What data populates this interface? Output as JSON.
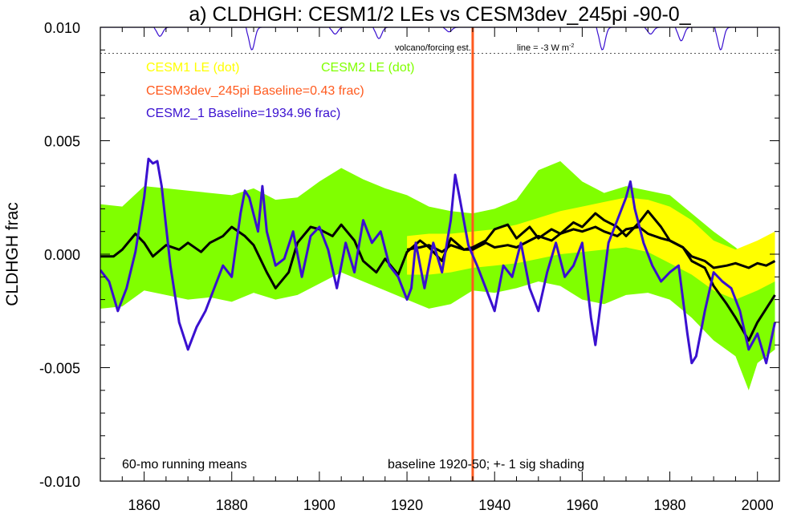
{
  "chart_data": {
    "type": "line",
    "title": "a) CLDHGH: CESM1/2 LEs vs CESM3dev_245pi -90-0_",
    "xlabel": "",
    "ylabel": "CLDHGH frac",
    "xlim": [
      1850,
      2005
    ],
    "ylim": [
      -0.01,
      0.01
    ],
    "x_ticks": [
      1860,
      1880,
      1900,
      1920,
      1940,
      1960,
      1980,
      2000
    ],
    "y_ticks": [
      0.01,
      0.005,
      0.0,
      -0.005,
      -0.01
    ],
    "y_tick_labels": [
      "0.010",
      "0.005",
      "0.000",
      "-0.005",
      "-0.010"
    ],
    "legend": [
      {
        "label": "CESM1 LE (dot)",
        "color": "#ffff00"
      },
      {
        "label": "CESM2 LE (dot)",
        "color": "#80ff00"
      },
      {
        "label": "CESM3dev_245pi Baseline=0.43 frac)",
        "color": "#ff5a1e"
      },
      {
        "label": "CESM2_1 Baseline=1934.96 frac)",
        "color": "#3a10d0"
      }
    ],
    "annotations": {
      "volcano_label": "volcano/forcing est.",
      "volcano_line_label": "line = -3 W m",
      "volcano_line_sup": "-2",
      "running_means": "60-mo running means",
      "baseline": "baseline 1920-50; +- 1 sig shading"
    },
    "reference_year": 1935,
    "volcano_threshold": 0.00885,
    "colors": {
      "cesm1_band": "#ffff00",
      "cesm2_band": "#80ff00",
      "cesm3": "#ff5a1e",
      "cesm2_1": "#3a10d0",
      "black_line": "#000000",
      "volcano": "#3a10d0"
    },
    "cesm2_band": {
      "x": [
        1850,
        1855,
        1860,
        1865,
        1870,
        1875,
        1880,
        1885,
        1890,
        1895,
        1900,
        1905,
        1910,
        1915,
        1920,
        1925,
        1930,
        1935,
        1940,
        1945,
        1950,
        1955,
        1960,
        1965,
        1970,
        1975,
        1980,
        1985,
        1990,
        1995,
        1998,
        2000,
        2004
      ],
      "upper": [
        0.0022,
        0.0021,
        0.003,
        0.0029,
        0.0028,
        0.0027,
        0.0026,
        0.0029,
        0.0024,
        0.0025,
        0.0032,
        0.0038,
        0.0033,
        0.0029,
        0.0026,
        0.0021,
        0.0019,
        0.0018,
        0.002,
        0.0024,
        0.0037,
        0.0041,
        0.0032,
        0.0027,
        0.003,
        0.0028,
        0.0026,
        0.0018,
        0.001,
        0.0003,
        -0.0002,
        0.0002,
        0.0006
      ],
      "lower": [
        -0.0024,
        -0.0023,
        -0.0016,
        -0.0018,
        -0.002,
        -0.0019,
        -0.0021,
        -0.0017,
        -0.002,
        -0.0018,
        -0.0013,
        -0.0008,
        -0.0012,
        -0.0016,
        -0.002,
        -0.0024,
        -0.0022,
        -0.0016,
        -0.0017,
        -0.0015,
        -0.0012,
        -0.0014,
        -0.002,
        -0.0022,
        -0.0018,
        -0.0017,
        -0.002,
        -0.0028,
        -0.0038,
        -0.0045,
        -0.006,
        -0.0048,
        -0.0042
      ]
    },
    "cesm1_band": {
      "x": [
        1920,
        1925,
        1930,
        1935,
        1940,
        1945,
        1950,
        1955,
        1960,
        1965,
        1970,
        1975,
        1980,
        1985,
        1990,
        1995,
        2000,
        2004
      ],
      "upper": [
        0.0008,
        0.0009,
        0.0009,
        0.001,
        0.0011,
        0.0013,
        0.0016,
        0.0019,
        0.0021,
        0.0023,
        0.0025,
        0.0024,
        0.0021,
        0.0015,
        0.0006,
        0.0002,
        0.0006,
        0.001
      ],
      "lower": [
        -0.0009,
        -0.0009,
        -0.0008,
        -0.0006,
        -0.0005,
        -0.0004,
        -0.0002,
        0.0,
        0.0001,
        0.0002,
        0.0003,
        0.0001,
        -0.0004,
        -0.0009,
        -0.0016,
        -0.002,
        -0.0016,
        -0.0012
      ]
    },
    "series": [
      {
        "name": "CESM2 LE mean",
        "color": "#000000",
        "x": [
          1850,
          1853,
          1855,
          1858,
          1860,
          1862,
          1865,
          1868,
          1870,
          1873,
          1875,
          1878,
          1880,
          1883,
          1885,
          1888,
          1890,
          1893,
          1895,
          1898,
          1900,
          1903,
          1905,
          1908,
          1910,
          1913,
          1915,
          1918,
          1920,
          1923,
          1925,
          1928,
          1930,
          1933,
          1935,
          1938,
          1940,
          1943,
          1945,
          1948,
          1950,
          1953,
          1955,
          1958,
          1960,
          1963,
          1965,
          1968,
          1970,
          1973,
          1975,
          1978,
          1980,
          1983,
          1985,
          1988,
          1990,
          1993,
          1995,
          1998,
          2000,
          2002,
          2004
        ],
        "y": [
          -0.0001,
          -0.0001,
          0.0002,
          0.0009,
          0.0005,
          -0.0001,
          0.0004,
          0.0002,
          0.0005,
          0.0001,
          0.0005,
          0.0008,
          0.0012,
          0.0008,
          0.0004,
          -0.0008,
          -0.0015,
          -0.0008,
          0.0005,
          0.0012,
          0.0011,
          0.0008,
          0.0013,
          0.0006,
          -0.0003,
          -0.0008,
          -0.0002,
          -0.0009,
          0.0001,
          0.0006,
          0.0003,
          -0.0003,
          0.0007,
          0.0002,
          0.0003,
          0.0006,
          0.0011,
          0.0013,
          0.0007,
          0.0012,
          0.0007,
          0.0011,
          0.0009,
          0.0014,
          0.0012,
          0.0018,
          0.0015,
          0.0012,
          0.0008,
          0.0014,
          0.0019,
          0.0012,
          0.0006,
          0.0003,
          -0.0003,
          -0.0006,
          -0.0014,
          -0.0022,
          -0.0028,
          -0.0038,
          -0.003,
          -0.0024,
          -0.0018
        ]
      },
      {
        "name": "CESM1 LE mean",
        "color": "#000000",
        "x": [
          1920,
          1923,
          1925,
          1928,
          1930,
          1933,
          1935,
          1938,
          1940,
          1943,
          1945,
          1948,
          1950,
          1953,
          1955,
          1958,
          1960,
          1963,
          1965,
          1968,
          1970,
          1973,
          1975,
          1978,
          1980,
          1983,
          1985,
          1988,
          1990,
          1993,
          1995,
          1998,
          2000,
          2002,
          2004
        ],
        "y": [
          0.0002,
          0.0003,
          0.0004,
          0.0001,
          0.0004,
          0.0002,
          0.0002,
          0.0005,
          0.0003,
          0.0004,
          0.0003,
          0.0006,
          0.0008,
          0.0006,
          0.0009,
          0.0011,
          0.001,
          0.0012,
          0.001,
          0.0008,
          0.0011,
          0.0012,
          0.0009,
          0.0007,
          0.0006,
          0.0003,
          -0.0001,
          -0.0003,
          -0.0006,
          -0.0005,
          -0.0004,
          -0.0006,
          -0.0004,
          -0.0005,
          -0.0003
        ]
      },
      {
        "name": "CESM2_1 Baseline=1934.96 frac)",
        "color": "#3a10d0",
        "x": [
          1850,
          1852,
          1854,
          1856,
          1858,
          1860,
          1861,
          1862,
          1863,
          1864,
          1866,
          1868,
          1870,
          1872,
          1874,
          1876,
          1878,
          1880,
          1882,
          1883,
          1884,
          1886,
          1887,
          1888,
          1890,
          1892,
          1894,
          1896,
          1898,
          1900,
          1902,
          1904,
          1906,
          1908,
          1910,
          1912,
          1914,
          1916,
          1918,
          1920,
          1921,
          1922,
          1924,
          1926,
          1928,
          1930,
          1931,
          1932,
          1934,
          1936,
          1938,
          1940,
          1942,
          1944,
          1946,
          1948,
          1950,
          1952,
          1954,
          1956,
          1958,
          1960,
          1962,
          1963,
          1964,
          1966,
          1968,
          1970,
          1971,
          1972,
          1974,
          1976,
          1978,
          1980,
          1982,
          1984,
          1985,
          1986,
          1988,
          1990,
          1992,
          1994,
          1996,
          1998,
          2000,
          2002,
          2004
        ],
        "y": [
          -0.0007,
          -0.0012,
          -0.0025,
          -0.0015,
          0.0001,
          0.0025,
          0.0042,
          0.004,
          0.0041,
          0.003,
          -0.0005,
          -0.003,
          -0.0042,
          -0.0032,
          -0.0025,
          -0.0015,
          -0.0005,
          -0.001,
          0.0018,
          0.0028,
          0.0025,
          0.001,
          0.003,
          0.001,
          -0.0005,
          -0.0002,
          0.001,
          -0.001,
          0.0008,
          0.0012,
          0.0002,
          -0.0015,
          0.0005,
          -0.0008,
          0.0015,
          0.0005,
          0.001,
          -0.0005,
          -0.001,
          -0.002,
          -0.0015,
          0.0005,
          -0.0015,
          0.0005,
          -0.0008,
          0.0015,
          0.0035,
          0.0025,
          0.0004,
          -0.0005,
          -0.0015,
          -0.0025,
          -0.0005,
          -0.001,
          0.0005,
          -0.0015,
          -0.0025,
          -0.0008,
          0.0005,
          -0.001,
          -0.0005,
          0.0005,
          -0.0028,
          -0.004,
          -0.0025,
          0.0005,
          0.0015,
          0.0025,
          0.0032,
          0.002,
          0.0005,
          -0.0005,
          -0.0012,
          -0.0008,
          -0.0005,
          -0.0035,
          -0.0048,
          -0.0045,
          -0.0025,
          -0.0008,
          -0.0012,
          -0.0015,
          -0.0025,
          -0.0042,
          -0.0035,
          -0.0048,
          -0.003
        ]
      }
    ],
    "volcano_dips": [
      {
        "year": 1863,
        "depth": 0.0004
      },
      {
        "year": 1884,
        "depth": 0.001
      },
      {
        "year": 1903,
        "depth": 0.0003
      },
      {
        "year": 1913,
        "depth": 0.0005
      },
      {
        "year": 1929,
        "depth": 0.0002
      },
      {
        "year": 1964,
        "depth": 0.001
      },
      {
        "year": 1975,
        "depth": 0.0003
      },
      {
        "year": 1982,
        "depth": 0.0006
      },
      {
        "year": 1991,
        "depth": 0.001
      }
    ]
  }
}
